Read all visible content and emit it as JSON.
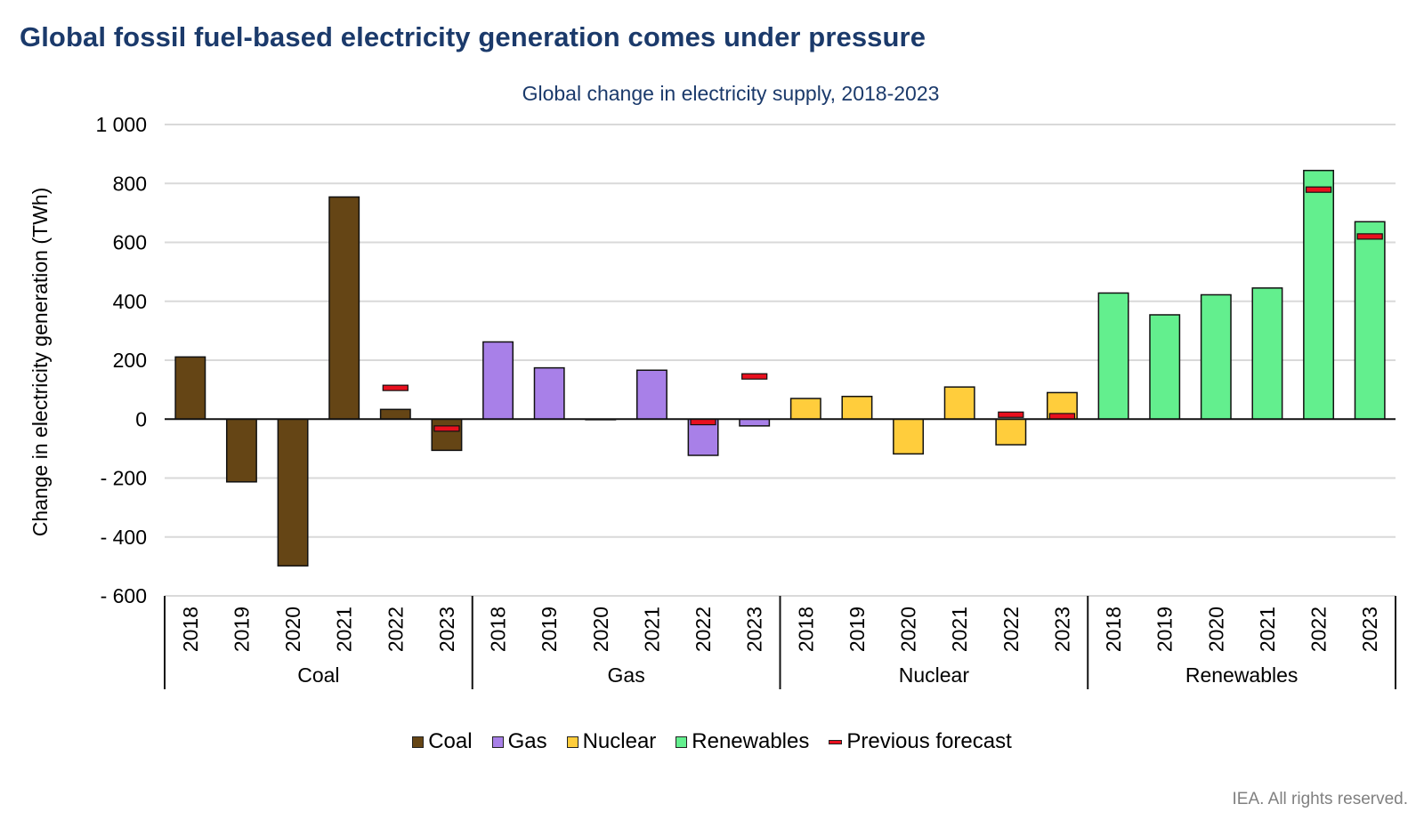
{
  "header": {
    "title": "Global fossil fuel-based electricity generation comes under pressure"
  },
  "footer": {
    "copyright": "IEA. All rights reserved."
  },
  "chart_data": {
    "type": "bar",
    "title": "Global change in electricity supply, 2018-2023",
    "xlabel": "",
    "ylabel": "Change in electricity generation (TWh)",
    "ylim": [
      -600,
      1000
    ],
    "yticks": [
      1000,
      800,
      600,
      400,
      200,
      0,
      -200,
      -400,
      -600
    ],
    "ytick_labels": [
      "1 000",
      "800",
      "600",
      "400",
      "200",
      "0",
      "- 200",
      "- 400",
      "- 600"
    ],
    "grid": true,
    "legend_position": "bottom",
    "years": [
      "2018",
      "2019",
      "2020",
      "2021",
      "2022",
      "2023"
    ],
    "groups": [
      {
        "name": "Coal",
        "color": "#654515",
        "values": [
          211,
          -213,
          -498,
          754,
          33,
          -106
        ],
        "previous_forecast": [
          null,
          null,
          null,
          null,
          106,
          -32
        ]
      },
      {
        "name": "Gas",
        "color": "#a880e8",
        "values": [
          262,
          174,
          -2,
          166,
          -123,
          -23
        ],
        "previous_forecast": [
          null,
          null,
          null,
          null,
          -10,
          145
        ]
      },
      {
        "name": "Nuclear",
        "color": "#ffcd3c",
        "values": [
          70,
          77,
          -118,
          109,
          -87,
          90
        ],
        "previous_forecast": [
          null,
          null,
          null,
          null,
          15,
          10
        ]
      },
      {
        "name": "Renewables",
        "color": "#63ef8e",
        "values": [
          428,
          354,
          422,
          445,
          844,
          670
        ],
        "previous_forecast": [
          null,
          null,
          null,
          null,
          779,
          620
        ]
      }
    ],
    "legend": [
      {
        "label": "Coal",
        "color": "#654515",
        "kind": "box"
      },
      {
        "label": "Gas",
        "color": "#a880e8",
        "kind": "box"
      },
      {
        "label": "Nuclear",
        "color": "#ffcd3c",
        "kind": "box"
      },
      {
        "label": "Renewables",
        "color": "#63ef8e",
        "kind": "box"
      },
      {
        "label": "Previous forecast",
        "color": "#e8101e",
        "kind": "line"
      }
    ]
  }
}
